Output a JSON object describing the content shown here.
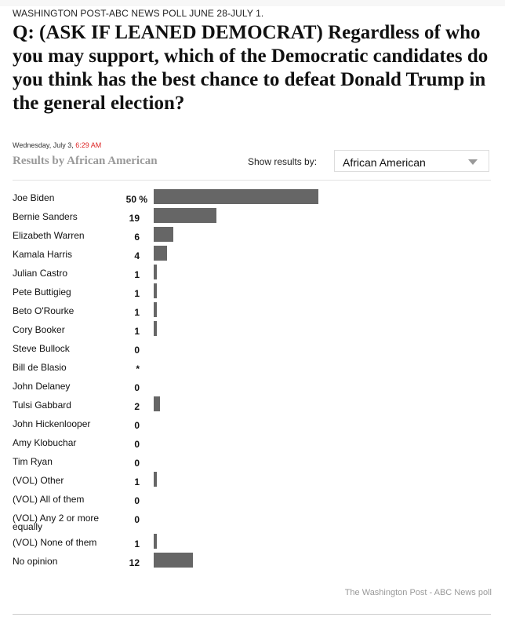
{
  "header": {
    "kicker": "WASHINGTON POST-ABC NEWS POLL JUNE 28-JULY 1.",
    "question": "Q: (ASK IF LEANED DEMOCRAT) Regardless of who you may support, which of the Democratic candidates do you think has the best chance to defeat Donald Trump in the general election?",
    "date": "Wednesday, July 3,",
    "time": "6:29 AM"
  },
  "controls": {
    "results_title": "Results by African American",
    "show_label": "Show results by:",
    "selected": "African American"
  },
  "footer": {
    "source": "The Washington Post - ABC News poll"
  },
  "colors": {
    "bar": "#666666",
    "time": "#dd2222",
    "muted": "#999999"
  },
  "chart_data": {
    "type": "bar",
    "orientation": "horizontal",
    "unit": "%",
    "categories": [
      "Joe Biden",
      "Bernie Sanders",
      "Elizabeth Warren",
      "Kamala Harris",
      "Julian Castro",
      "Pete Buttigieg",
      "Beto O'Rourke",
      "Cory Booker",
      "Steve Bullock",
      "Bill de Blasio",
      "John Delaney",
      "Tulsi Gabbard",
      "John Hickenlooper",
      "Amy Klobuchar",
      "Tim Ryan",
      "(VOL) Other",
      "(VOL) All of them",
      "(VOL) Any 2 or more equally",
      "(VOL) None of them",
      "No opinion"
    ],
    "labels": [
      "50 %",
      "19",
      "6",
      "4",
      "1",
      "1",
      "1",
      "1",
      "0",
      "*",
      "0",
      "2",
      "0",
      "0",
      "0",
      "1",
      "0",
      "0",
      "1",
      "12"
    ],
    "values": [
      50,
      19,
      6,
      4,
      1,
      1,
      1,
      1,
      0,
      0,
      0,
      2,
      0,
      0,
      0,
      1,
      0,
      0,
      1,
      12
    ],
    "xlim": [
      0,
      50
    ]
  }
}
